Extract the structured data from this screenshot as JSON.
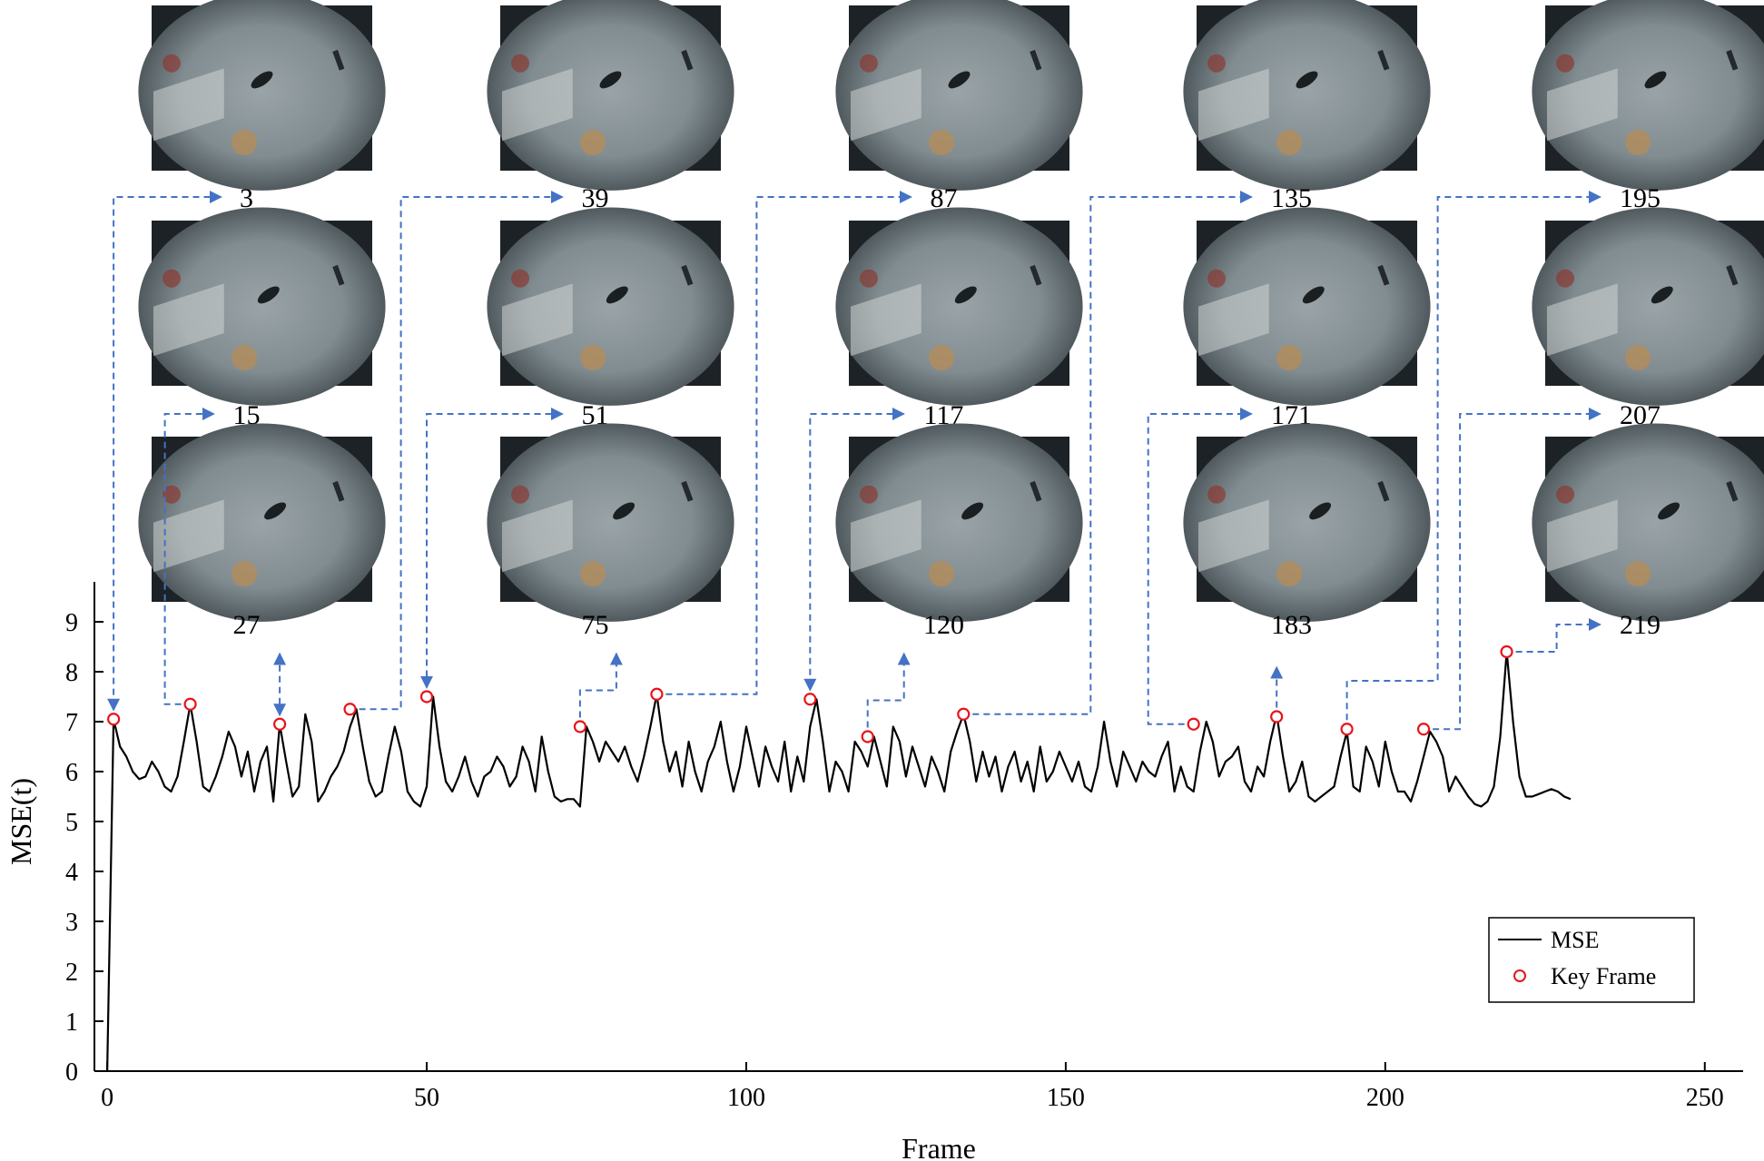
{
  "chart_data": {
    "type": "line",
    "xlabel": "Frame",
    "ylabel": "MSE(t)",
    "xlim": [
      -2,
      256
    ],
    "ylim": [
      0,
      9.8
    ],
    "x_ticks": [
      0,
      50,
      100,
      150,
      200,
      250
    ],
    "y_ticks": [
      0,
      1,
      2,
      3,
      4,
      5,
      6,
      7,
      8,
      9
    ],
    "grid": false,
    "legend_position": "bottom-right",
    "legend": [
      "MSE",
      "Key Frame"
    ],
    "series": [
      {
        "name": "MSE",
        "color": "#000000",
        "x": [
          0,
          1,
          2,
          3,
          4,
          5,
          6,
          7,
          8,
          9,
          10,
          11,
          12,
          13,
          14,
          15,
          16,
          17,
          18,
          19,
          20,
          21,
          22,
          23,
          24,
          25,
          26,
          27,
          28,
          29,
          30,
          31,
          32,
          33,
          34,
          35,
          36,
          37,
          38,
          39,
          40,
          41,
          42,
          43,
          44,
          45,
          46,
          47,
          48,
          49,
          50,
          51,
          52,
          53,
          54,
          55,
          56,
          57,
          58,
          59,
          60,
          61,
          62,
          63,
          64,
          65,
          66,
          67,
          68,
          69,
          70,
          71,
          72,
          73,
          74,
          75,
          76,
          77,
          78,
          79,
          80,
          81,
          82,
          83,
          84,
          85,
          86,
          87,
          88,
          89,
          90,
          91,
          92,
          93,
          94,
          95,
          96,
          97,
          98,
          99,
          100,
          101,
          102,
          103,
          104,
          105,
          106,
          107,
          108,
          109,
          110,
          111,
          112,
          113,
          114,
          115,
          116,
          117,
          118,
          119,
          120,
          121,
          122,
          123,
          124,
          125,
          126,
          127,
          128,
          129,
          130,
          131,
          132,
          133,
          134,
          135,
          136,
          137,
          138,
          139,
          140,
          141,
          142,
          143,
          144,
          145,
          146,
          147,
          148,
          149,
          150,
          151,
          152,
          153,
          154,
          155,
          156,
          157,
          158,
          159,
          160,
          161,
          162,
          163,
          164,
          165,
          166,
          167,
          168,
          169,
          170,
          171,
          172,
          173,
          174,
          175,
          176,
          177,
          178,
          179,
          180,
          181,
          182,
          183,
          184,
          185,
          186,
          187,
          188,
          189,
          190,
          191,
          192,
          193,
          194,
          195,
          196,
          197,
          198,
          199,
          200,
          201,
          202,
          203,
          204,
          205,
          206,
          207,
          208,
          209,
          210,
          211,
          212,
          213,
          214,
          215,
          216,
          217,
          218,
          219,
          220,
          221,
          222,
          223,
          224,
          225,
          226,
          227,
          228,
          229
        ],
        "y": [
          0.0,
          7.05,
          6.5,
          6.3,
          6.0,
          5.85,
          5.9,
          6.2,
          6.0,
          5.7,
          5.6,
          5.9,
          6.6,
          7.35,
          6.6,
          5.7,
          5.6,
          5.9,
          6.3,
          6.8,
          6.5,
          5.9,
          6.4,
          5.6,
          6.2,
          6.5,
          5.4,
          6.95,
          6.2,
          5.5,
          5.7,
          7.15,
          6.6,
          5.4,
          5.6,
          5.9,
          6.1,
          6.4,
          6.9,
          7.25,
          6.5,
          5.8,
          5.5,
          5.6,
          6.3,
          6.9,
          6.4,
          5.6,
          5.4,
          5.3,
          5.7,
          7.5,
          6.5,
          5.8,
          5.6,
          5.9,
          6.3,
          5.8,
          5.5,
          5.9,
          6.0,
          6.3,
          6.1,
          5.7,
          5.9,
          6.5,
          6.2,
          5.6,
          6.7,
          6.0,
          5.5,
          5.4,
          5.45,
          5.45,
          5.3,
          6.9,
          6.6,
          6.2,
          6.6,
          6.4,
          6.2,
          6.5,
          6.1,
          5.8,
          6.3,
          6.9,
          7.55,
          6.6,
          6.0,
          6.4,
          5.7,
          6.6,
          6.0,
          5.6,
          6.2,
          6.5,
          7.0,
          6.2,
          5.6,
          6.1,
          6.9,
          6.3,
          5.7,
          6.5,
          6.1,
          5.8,
          6.6,
          5.6,
          6.3,
          5.8,
          6.9,
          7.45,
          6.6,
          5.6,
          6.2,
          6.0,
          5.6,
          6.6,
          6.4,
          6.1,
          6.7,
          6.2,
          5.7,
          6.9,
          6.6,
          5.9,
          6.5,
          6.1,
          5.7,
          6.3,
          6.0,
          5.6,
          6.4,
          6.8,
          7.15,
          6.6,
          5.8,
          6.4,
          5.9,
          6.3,
          5.6,
          6.1,
          6.4,
          5.8,
          6.2,
          5.6,
          6.5,
          5.8,
          6.0,
          6.4,
          6.1,
          5.8,
          6.2,
          5.7,
          5.6,
          6.1,
          7.0,
          6.2,
          5.7,
          6.4,
          6.1,
          5.8,
          6.2,
          6.0,
          5.9,
          6.3,
          6.6,
          5.6,
          6.1,
          5.7,
          5.6,
          6.4,
          7.0,
          6.6,
          5.9,
          6.2,
          6.3,
          6.5,
          5.8,
          5.6,
          6.1,
          5.9,
          6.6,
          7.15,
          6.3,
          5.6,
          5.8,
          6.2,
          5.5,
          5.4,
          5.5,
          5.6,
          5.7,
          6.3,
          6.8,
          5.7,
          5.6,
          6.5,
          6.2,
          5.7,
          6.6,
          6.0,
          5.6,
          5.6,
          5.4,
          5.8,
          6.3,
          6.8,
          6.6,
          6.3,
          5.6,
          5.9,
          5.7,
          5.5,
          5.35,
          5.3,
          5.4,
          5.7,
          6.7,
          8.4,
          7.0,
          5.9,
          5.5,
          5.5,
          5.55,
          5.6,
          5.65,
          5.6,
          5.5,
          5.45
        ]
      },
      {
        "name": "Key Frame",
        "marker": "circle",
        "color": "#e8141c",
        "x": [
          1,
          13,
          27,
          38,
          50,
          74,
          86,
          110,
          119,
          134,
          170,
          183,
          194,
          206,
          219
        ],
        "y": [
          7.05,
          7.35,
          6.95,
          7.25,
          7.5,
          6.9,
          7.55,
          7.45,
          6.7,
          7.15,
          6.95,
          7.1,
          6.85,
          6.85,
          8.4
        ]
      }
    ]
  },
  "thumbnails": {
    "columns": [
      {
        "labels": [
          "3",
          "15",
          "27"
        ]
      },
      {
        "labels": [
          "39",
          "51",
          "75"
        ]
      },
      {
        "labels": [
          "87",
          "117",
          "120"
        ]
      },
      {
        "labels": [
          "135",
          "171",
          "183"
        ]
      },
      {
        "labels": [
          "195",
          "207",
          "219"
        ]
      }
    ]
  },
  "annotations": {
    "arrow_color": "#4472c4"
  }
}
